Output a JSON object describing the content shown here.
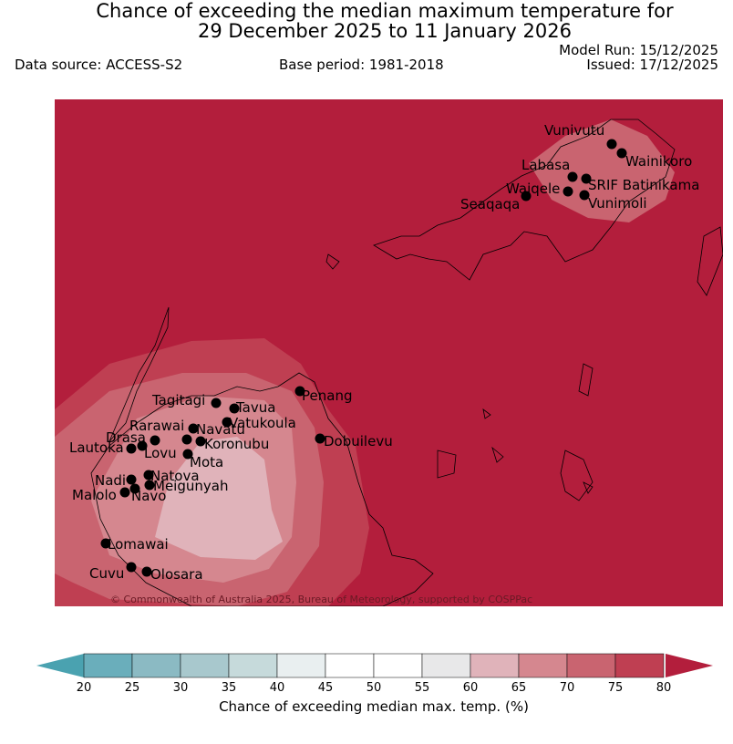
{
  "header": {
    "title_line1": "Chance of exceeding the median maximum temperature for",
    "title_line2": "29 December 2025 to 11 January 2026",
    "data_source": "Data source: ACCESS-S2",
    "base_period": "Base period: 1981-2018",
    "model_run": "Model Run: 15/12/2025",
    "issued": "Issued: 17/12/2025"
  },
  "map": {
    "copyright": "© Commonwealth of Australia 2025, Bureau of Meteorology, supported by COSPPac",
    "background_color": "#b31e3c",
    "places": [
      {
        "name": "Vunivutu"
      },
      {
        "name": "Wainikoro"
      },
      {
        "name": "Labasa"
      },
      {
        "name": "SRIF Batinikama"
      },
      {
        "name": "Waiqele"
      },
      {
        "name": "Seaqaqa"
      },
      {
        "name": "Vunimoli"
      },
      {
        "name": "Penang"
      },
      {
        "name": "Tagitagi"
      },
      {
        "name": "Tavua"
      },
      {
        "name": "Vatukoula"
      },
      {
        "name": "Rarawai"
      },
      {
        "name": "Navatu"
      },
      {
        "name": "Drasa"
      },
      {
        "name": "Koronubu"
      },
      {
        "name": "Lautoka"
      },
      {
        "name": "Lovu"
      },
      {
        "name": "Dobuilevu"
      },
      {
        "name": "Mota"
      },
      {
        "name": "Natova"
      },
      {
        "name": "Nadi"
      },
      {
        "name": "Meigunyah"
      },
      {
        "name": "Malolo"
      },
      {
        "name": "Navo"
      },
      {
        "name": "Lomawai"
      },
      {
        "name": "Cuvu"
      },
      {
        "name": "Olosara"
      }
    ]
  },
  "colorbar": {
    "label": "Chance of exceeding median max. temp. (%)",
    "ticks": [
      "20",
      "25",
      "30",
      "35",
      "40",
      "45",
      "50",
      "55",
      "60",
      "65",
      "70",
      "75",
      "80"
    ],
    "colors": [
      "#6aaebb",
      "#8bbac3",
      "#a8c8cd",
      "#c6dadb",
      "#e9eff0",
      "#ffffff",
      "#ffffff",
      "#e8e8e9",
      "#e0b3ba",
      "#d5878f",
      "#c96470",
      "#bf3f52"
    ],
    "under_color": "#4aa2b0",
    "over_color": "#b31e3c"
  }
}
